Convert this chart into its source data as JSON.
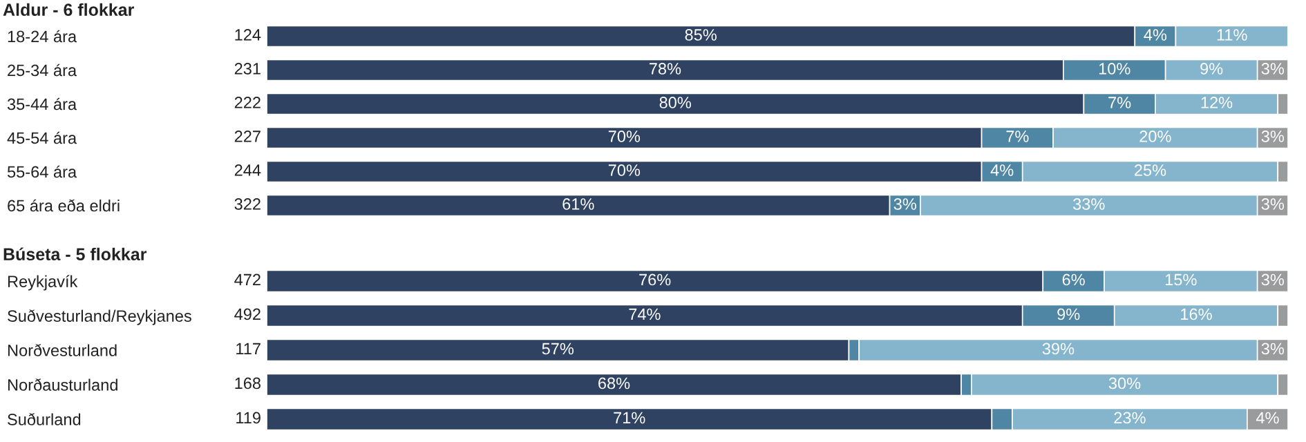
{
  "chart_data": [
    {
      "type": "bar",
      "orientation": "horizontal",
      "stacked": true,
      "title": "Aldur - 6 flokkar",
      "categories": [
        "18-24 ára",
        "25-34 ára",
        "35-44 ára",
        "45-54 ára",
        "55-64 ára",
        "65 ára eða eldri"
      ],
      "xlim": [
        0,
        100
      ],
      "tick_labels": "y",
      "annotations": [
        "124",
        "231",
        "222",
        "227",
        "244",
        "322"
      ],
      "series": [
        {
          "color": "#2f4262",
          "values": [
            85,
            78,
            80,
            70,
            70,
            61
          ],
          "value_labels": [
            "85%",
            "78%",
            "80%",
            "70%",
            "70%",
            "61%"
          ]
        },
        {
          "color": "#4f86a3",
          "values": [
            4,
            10,
            7,
            7,
            4,
            3
          ],
          "value_labels": [
            "4%",
            "10%",
            "7%",
            "7%",
            "4%",
            "3%"
          ]
        },
        {
          "color": "#84b5cc",
          "values": [
            11,
            9,
            12,
            20,
            25,
            33
          ],
          "value_labels": [
            "11%",
            "9%",
            "12%",
            "20%",
            "25%",
            "33%"
          ]
        },
        {
          "color": "#999b9d",
          "values": [
            null,
            3,
            1,
            3,
            1,
            3
          ],
          "value_labels": [
            null,
            "3%",
            null,
            "3%",
            null,
            "3%"
          ]
        }
      ]
    },
    {
      "type": "bar",
      "orientation": "horizontal",
      "stacked": true,
      "title": "Búseta - 5 flokkar",
      "categories": [
        "Reykjavík",
        "Suðvesturland/Reykjanes",
        "Norðvesturland",
        "Norðausturland",
        "Suðurland"
      ],
      "xlim": [
        0,
        100
      ],
      "tick_labels": "y",
      "annotations": [
        "472",
        "492",
        "117",
        "168",
        "119"
      ],
      "series": [
        {
          "color": "#2f4262",
          "values": [
            76,
            74,
            57,
            68,
            71
          ],
          "value_labels": [
            "76%",
            "74%",
            "57%",
            "68%",
            "71%"
          ]
        },
        {
          "color": "#4f86a3",
          "values": [
            6,
            9,
            1,
            1,
            2
          ],
          "value_labels": [
            "6%",
            "9%",
            null,
            null,
            null
          ]
        },
        {
          "color": "#84b5cc",
          "values": [
            15,
            16,
            39,
            30,
            23
          ],
          "value_labels": [
            "15%",
            "16%",
            "39%",
            "30%",
            "23%"
          ]
        },
        {
          "color": "#999b9d",
          "values": [
            3,
            1,
            3,
            1,
            4
          ],
          "value_labels": [
            "3%",
            null,
            "3%",
            null,
            "4%"
          ]
        }
      ]
    }
  ]
}
